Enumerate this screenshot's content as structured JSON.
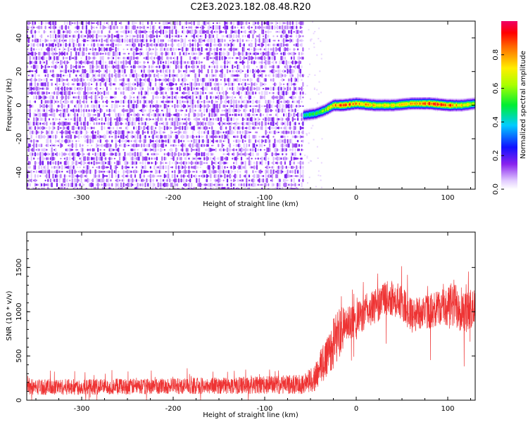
{
  "title": "C2E3.2023.182.08.48.R20",
  "chart_data": [
    {
      "type": "heatmap",
      "xlabel": "Height of straight line (km)",
      "ylabel": "Frequency (Hz)",
      "xlim": [
        -360,
        130
      ],
      "ylim": [
        -50,
        50
      ],
      "x_ticks": [
        -300,
        -200,
        -100,
        0,
        100
      ],
      "y_ticks": [
        -40,
        -20,
        0,
        20,
        40
      ],
      "colorbar": {
        "label": "Normalized spectral amplitude",
        "range": [
          0.0,
          1.0
        ],
        "ticks": [
          0.0,
          0.2,
          0.4,
          0.6,
          0.8
        ]
      },
      "noise_region_x": [
        -360,
        -58
      ],
      "ridge": {
        "x": [
          -58,
          -45,
          -35,
          -25,
          -15,
          0,
          20,
          40,
          60,
          80,
          100,
          115,
          130
        ],
        "frequency": [
          -6,
          -5,
          -3,
          0,
          0,
          1,
          0,
          0,
          1,
          1,
          0,
          0,
          1
        ],
        "peak_amplitude": [
          0.45,
          0.5,
          0.6,
          0.8,
          0.85,
          0.8,
          0.75,
          0.7,
          0.75,
          0.9,
          0.85,
          0.75,
          0.6
        ]
      }
    },
    {
      "type": "line",
      "xlabel": "Height of straight line (km)",
      "ylabel": "SNR (10 * v/v)",
      "xlim": [
        -360,
        130
      ],
      "ylim": [
        0,
        1900
      ],
      "x_ticks": [
        -300,
        -200,
        -100,
        0,
        100
      ],
      "y_ticks": [
        0,
        500,
        1000,
        1500
      ],
      "color": "#ee3333",
      "envelope": {
        "x": [
          -360,
          -300,
          -200,
          -100,
          -60,
          -45,
          -35,
          -25,
          -20,
          -10,
          0,
          10,
          20,
          30,
          40,
          50,
          60,
          70,
          80,
          90,
          100,
          110,
          120,
          130
        ],
        "mean": [
          150,
          150,
          160,
          170,
          180,
          250,
          450,
          650,
          750,
          850,
          900,
          1000,
          1050,
          1150,
          1150,
          1100,
          950,
          1000,
          1000,
          1050,
          1050,
          1100,
          1000,
          1050
        ],
        "spread": [
          90,
          90,
          90,
          100,
          110,
          150,
          250,
          300,
          300,
          200,
          200,
          200,
          200,
          200,
          200,
          200,
          200,
          200,
          200,
          200,
          250,
          300,
          250,
          200
        ]
      }
    }
  ]
}
